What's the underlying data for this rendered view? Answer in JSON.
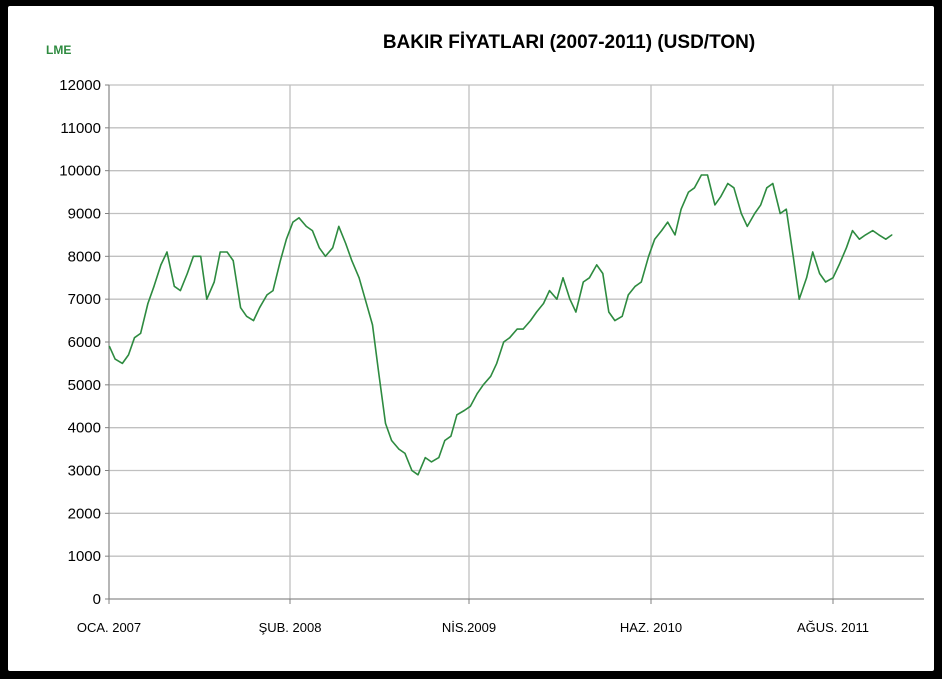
{
  "chart_data": {
    "type": "line",
    "title": "BAKIR FİYATLARI (2007-2011)  (USD/TON)",
    "corner_label": "LME",
    "xlabel": "",
    "ylabel": "",
    "ylim": [
      0,
      12000
    ],
    "yticks": [
      0,
      1000,
      2000,
      3000,
      4000,
      5000,
      6000,
      7000,
      8000,
      9000,
      10000,
      11000,
      12000
    ],
    "grid": true,
    "legend": "none",
    "x_tick_labels": [
      {
        "label": "OCA. 2007",
        "date": "2007-01"
      },
      {
        "label": "ŞUB. 2008",
        "date": "2008-02"
      },
      {
        "label": "NİS.2009",
        "date": "2009-04"
      },
      {
        "label": "HAZ. 2010",
        "date": "2010-06"
      },
      {
        "label": "AĞUS. 2011",
        "date": "2011-08"
      }
    ],
    "colors": {
      "line": "#2e8b40",
      "grid": "#c0c0c0",
      "axis": "#808080",
      "corner_label": "#2e8b40",
      "background": "#ffffff",
      "frame": "#000000"
    },
    "series": [
      {
        "x": [
          "2007-01-02",
          "2007-01-15",
          "2007-02-01",
          "2007-02-15",
          "2007-03-01",
          "2007-03-15",
          "2007-04-01",
          "2007-04-15",
          "2007-05-01",
          "2007-05-15",
          "2007-06-01",
          "2007-06-15",
          "2007-07-01",
          "2007-07-15",
          "2007-08-01",
          "2007-08-15",
          "2007-09-01",
          "2007-09-15",
          "2007-10-01",
          "2007-10-15",
          "2007-11-01",
          "2007-11-15",
          "2007-12-01",
          "2007-12-15",
          "2008-01-01",
          "2008-01-15",
          "2008-02-01",
          "2008-02-15",
          "2008-03-01",
          "2008-03-15",
          "2008-04-01",
          "2008-04-15",
          "2008-05-01",
          "2008-05-15",
          "2008-06-01",
          "2008-06-15",
          "2008-07-01",
          "2008-07-15",
          "2008-08-01",
          "2008-08-15",
          "2008-09-01",
          "2008-09-15",
          "2008-10-01",
          "2008-10-15",
          "2008-11-01",
          "2008-11-15",
          "2008-12-01",
          "2008-12-15",
          "2009-01-01",
          "2009-01-15",
          "2009-02-01",
          "2009-02-15",
          "2009-03-01",
          "2009-03-15",
          "2009-04-01",
          "2009-04-15",
          "2009-05-01",
          "2009-05-15",
          "2009-06-01",
          "2009-06-15",
          "2009-07-01",
          "2009-07-15",
          "2009-08-01",
          "2009-08-15",
          "2009-09-01",
          "2009-09-15",
          "2009-10-01",
          "2009-10-15",
          "2009-11-01",
          "2009-11-15",
          "2009-12-01",
          "2009-12-15",
          "2010-01-01",
          "2010-01-15",
          "2010-02-01",
          "2010-02-15",
          "2010-03-01",
          "2010-03-15",
          "2010-04-01",
          "2010-04-15",
          "2010-05-01",
          "2010-05-15",
          "2010-06-01",
          "2010-06-15",
          "2010-07-01",
          "2010-07-15",
          "2010-08-01",
          "2010-08-15",
          "2010-09-01",
          "2010-09-15",
          "2010-10-01",
          "2010-10-15",
          "2010-11-01",
          "2010-11-15",
          "2010-12-01",
          "2010-12-15",
          "2011-01-01",
          "2011-01-15",
          "2011-02-01",
          "2011-02-15",
          "2011-03-01",
          "2011-03-15",
          "2011-04-01",
          "2011-04-15",
          "2011-05-01",
          "2011-05-15",
          "2011-06-01",
          "2011-06-15",
          "2011-07-01",
          "2011-07-15",
          "2011-08-01",
          "2011-08-15",
          "2011-09-01",
          "2011-09-15",
          "2011-10-01",
          "2011-10-15",
          "2011-11-01",
          "2011-11-15",
          "2011-12-01",
          "2011-12-15"
        ],
        "values": [
          5900,
          5600,
          5500,
          5700,
          6100,
          6200,
          6900,
          7300,
          7800,
          8100,
          7300,
          7200,
          7600,
          8000,
          8000,
          7000,
          7400,
          8100,
          8100,
          7900,
          6800,
          6600,
          6500,
          6800,
          7100,
          7200,
          7900,
          8400,
          8800,
          8900,
          8700,
          8600,
          8200,
          8000,
          8200,
          8700,
          8300,
          7900,
          7500,
          7000,
          6400,
          5300,
          4100,
          3700,
          3500,
          3400,
          3000,
          2900,
          3300,
          3200,
          3300,
          3700,
          3800,
          4300,
          4400,
          4500,
          4800,
          5000,
          5200,
          5500,
          6000,
          6100,
          6300,
          6300,
          6500,
          6700,
          6900,
          7200,
          7000,
          7500,
          7000,
          6700,
          7400,
          7500,
          7800,
          7600,
          6700,
          6500,
          6600,
          7100,
          7300,
          7400,
          8000,
          8400,
          8600,
          8800,
          8500,
          9100,
          9500,
          9600,
          9900,
          9900,
          9200,
          9400,
          9700,
          9600,
          9000,
          8700,
          9000,
          9200,
          9600,
          9700,
          9000,
          9100,
          8000,
          7000,
          7500,
          8100,
          7600,
          7400,
          7500,
          7800,
          8200,
          8600,
          8400,
          8500,
          8600,
          8500,
          8400,
          8500
        ]
      }
    ]
  }
}
